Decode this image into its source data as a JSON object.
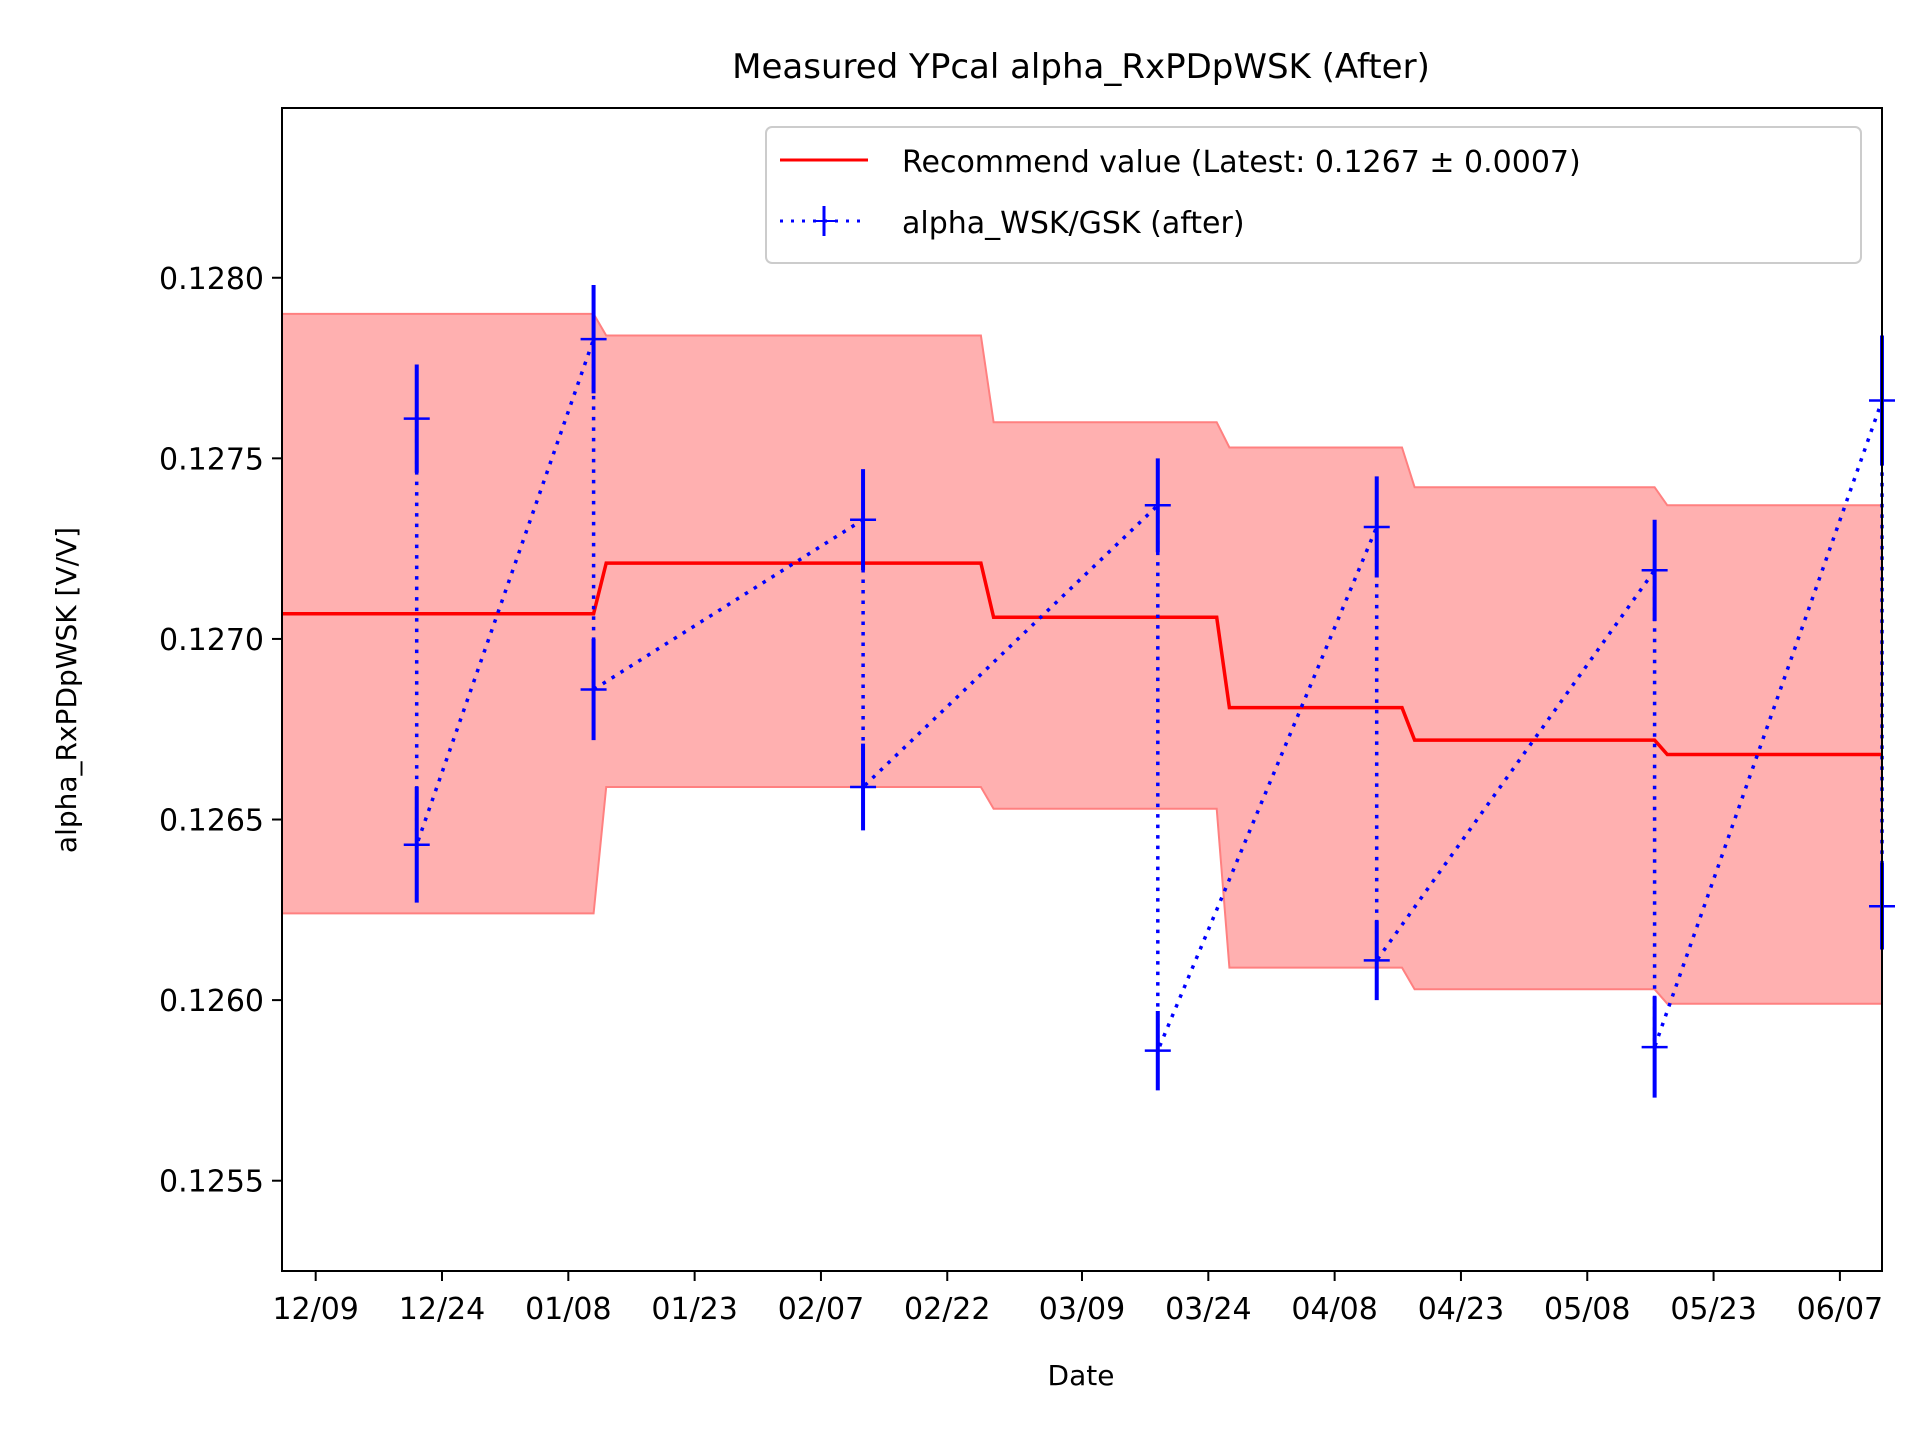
{
  "chart_data": {
    "type": "line",
    "title": "Measured YPcal alpha_RxPDpWSK (After)",
    "xlabel": "Date",
    "ylabel": "alpha_RxPDpWSK [V/V]",
    "ylim": [
      0.12525,
      0.12847
    ],
    "xlim": [
      "12/05",
      "06/12"
    ],
    "year_hint": "2023-12 to 2024-06",
    "xticks": [
      "12/09",
      "12/24",
      "01/08",
      "01/23",
      "02/07",
      "02/22",
      "03/09",
      "03/24",
      "04/08",
      "04/23",
      "05/08",
      "05/23",
      "06/07"
    ],
    "yticks": [
      "0.1255",
      "0.1260",
      "0.1265",
      "0.1270",
      "0.1275",
      "0.1280"
    ],
    "grid": false,
    "legend_position": "top-right",
    "colors": {
      "recommend": "#ff0000",
      "band_fill": "#ffb0b0",
      "band_edge": "#ff8080",
      "measured": "#0000ff"
    },
    "recommend": {
      "label": "Recommend value (Latest: 0.1267 ± 0.0007)",
      "steps": [
        {
          "start": "12/05",
          "end": "01/11",
          "value": 0.12707,
          "lower": 0.12624,
          "upper": 0.1279
        },
        {
          "start": "01/11",
          "end": "02/26",
          "value": 0.12721,
          "lower": 0.12659,
          "upper": 0.12784
        },
        {
          "start": "02/26",
          "end": "03/25",
          "value": 0.12706,
          "lower": 0.12653,
          "upper": 0.1276
        },
        {
          "start": "03/25",
          "end": "04/16",
          "value": 0.12681,
          "lower": 0.12609,
          "upper": 0.12753
        },
        {
          "start": "04/16",
          "end": "05/16",
          "value": 0.12672,
          "lower": 0.12603,
          "upper": 0.12742
        },
        {
          "start": "05/16",
          "end": "06/12",
          "value": 0.12668,
          "lower": 0.12599,
          "upper": 0.12737
        }
      ]
    },
    "measured": {
      "label": "alpha_WSK/GSK (after)",
      "points": [
        {
          "x": "12/21",
          "y": 0.12761,
          "err": 0.00015
        },
        {
          "x": "12/21",
          "y": 0.12643,
          "err": 0.00016
        },
        {
          "x": "01/11",
          "y": 0.12783,
          "err": 0.00015
        },
        {
          "x": "01/11",
          "y": 0.12686,
          "err": 0.00014
        },
        {
          "x": "02/12",
          "y": 0.12733,
          "err": 0.00014
        },
        {
          "x": "02/12",
          "y": 0.12659,
          "err": 0.00012
        },
        {
          "x": "03/18",
          "y": 0.12737,
          "err": 0.00013
        },
        {
          "x": "03/18",
          "y": 0.12586,
          "err": 0.00011
        },
        {
          "x": "04/13",
          "y": 0.12731,
          "err": 0.00014
        },
        {
          "x": "04/13",
          "y": 0.12611,
          "err": 0.00011
        },
        {
          "x": "05/16",
          "y": 0.12719,
          "err": 0.00014
        },
        {
          "x": "05/16",
          "y": 0.12587,
          "err": 0.00014
        },
        {
          "x": "06/12",
          "y": 0.12766,
          "err": 0.00018
        },
        {
          "x": "06/12",
          "y": 0.12626,
          "err": 0.00012
        }
      ]
    }
  }
}
